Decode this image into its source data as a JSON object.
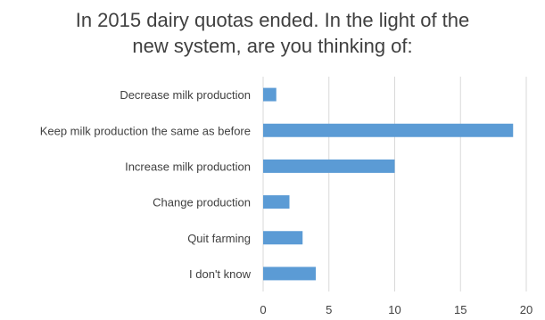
{
  "chart_data": {
    "type": "bar",
    "orientation": "horizontal",
    "title_lines": [
      "In 2015 dairy quotas ended. In the light of the",
      "new system, are you thinking of:"
    ],
    "categories": [
      "Decrease milk production",
      "Keep milk production the same as before",
      "Increase milk production",
      "Change production",
      "Quit farming",
      "I don't know"
    ],
    "values": [
      1,
      19,
      10,
      2,
      3,
      4
    ],
    "xlim": [
      0,
      20
    ],
    "x_ticks": [
      "0",
      "5",
      "10",
      "15",
      "20"
    ],
    "xlabel": "",
    "ylabel": "",
    "grid": true,
    "legend": "none",
    "bar_color": "#5b9bd5",
    "grid_color": "#d9d9d9"
  }
}
